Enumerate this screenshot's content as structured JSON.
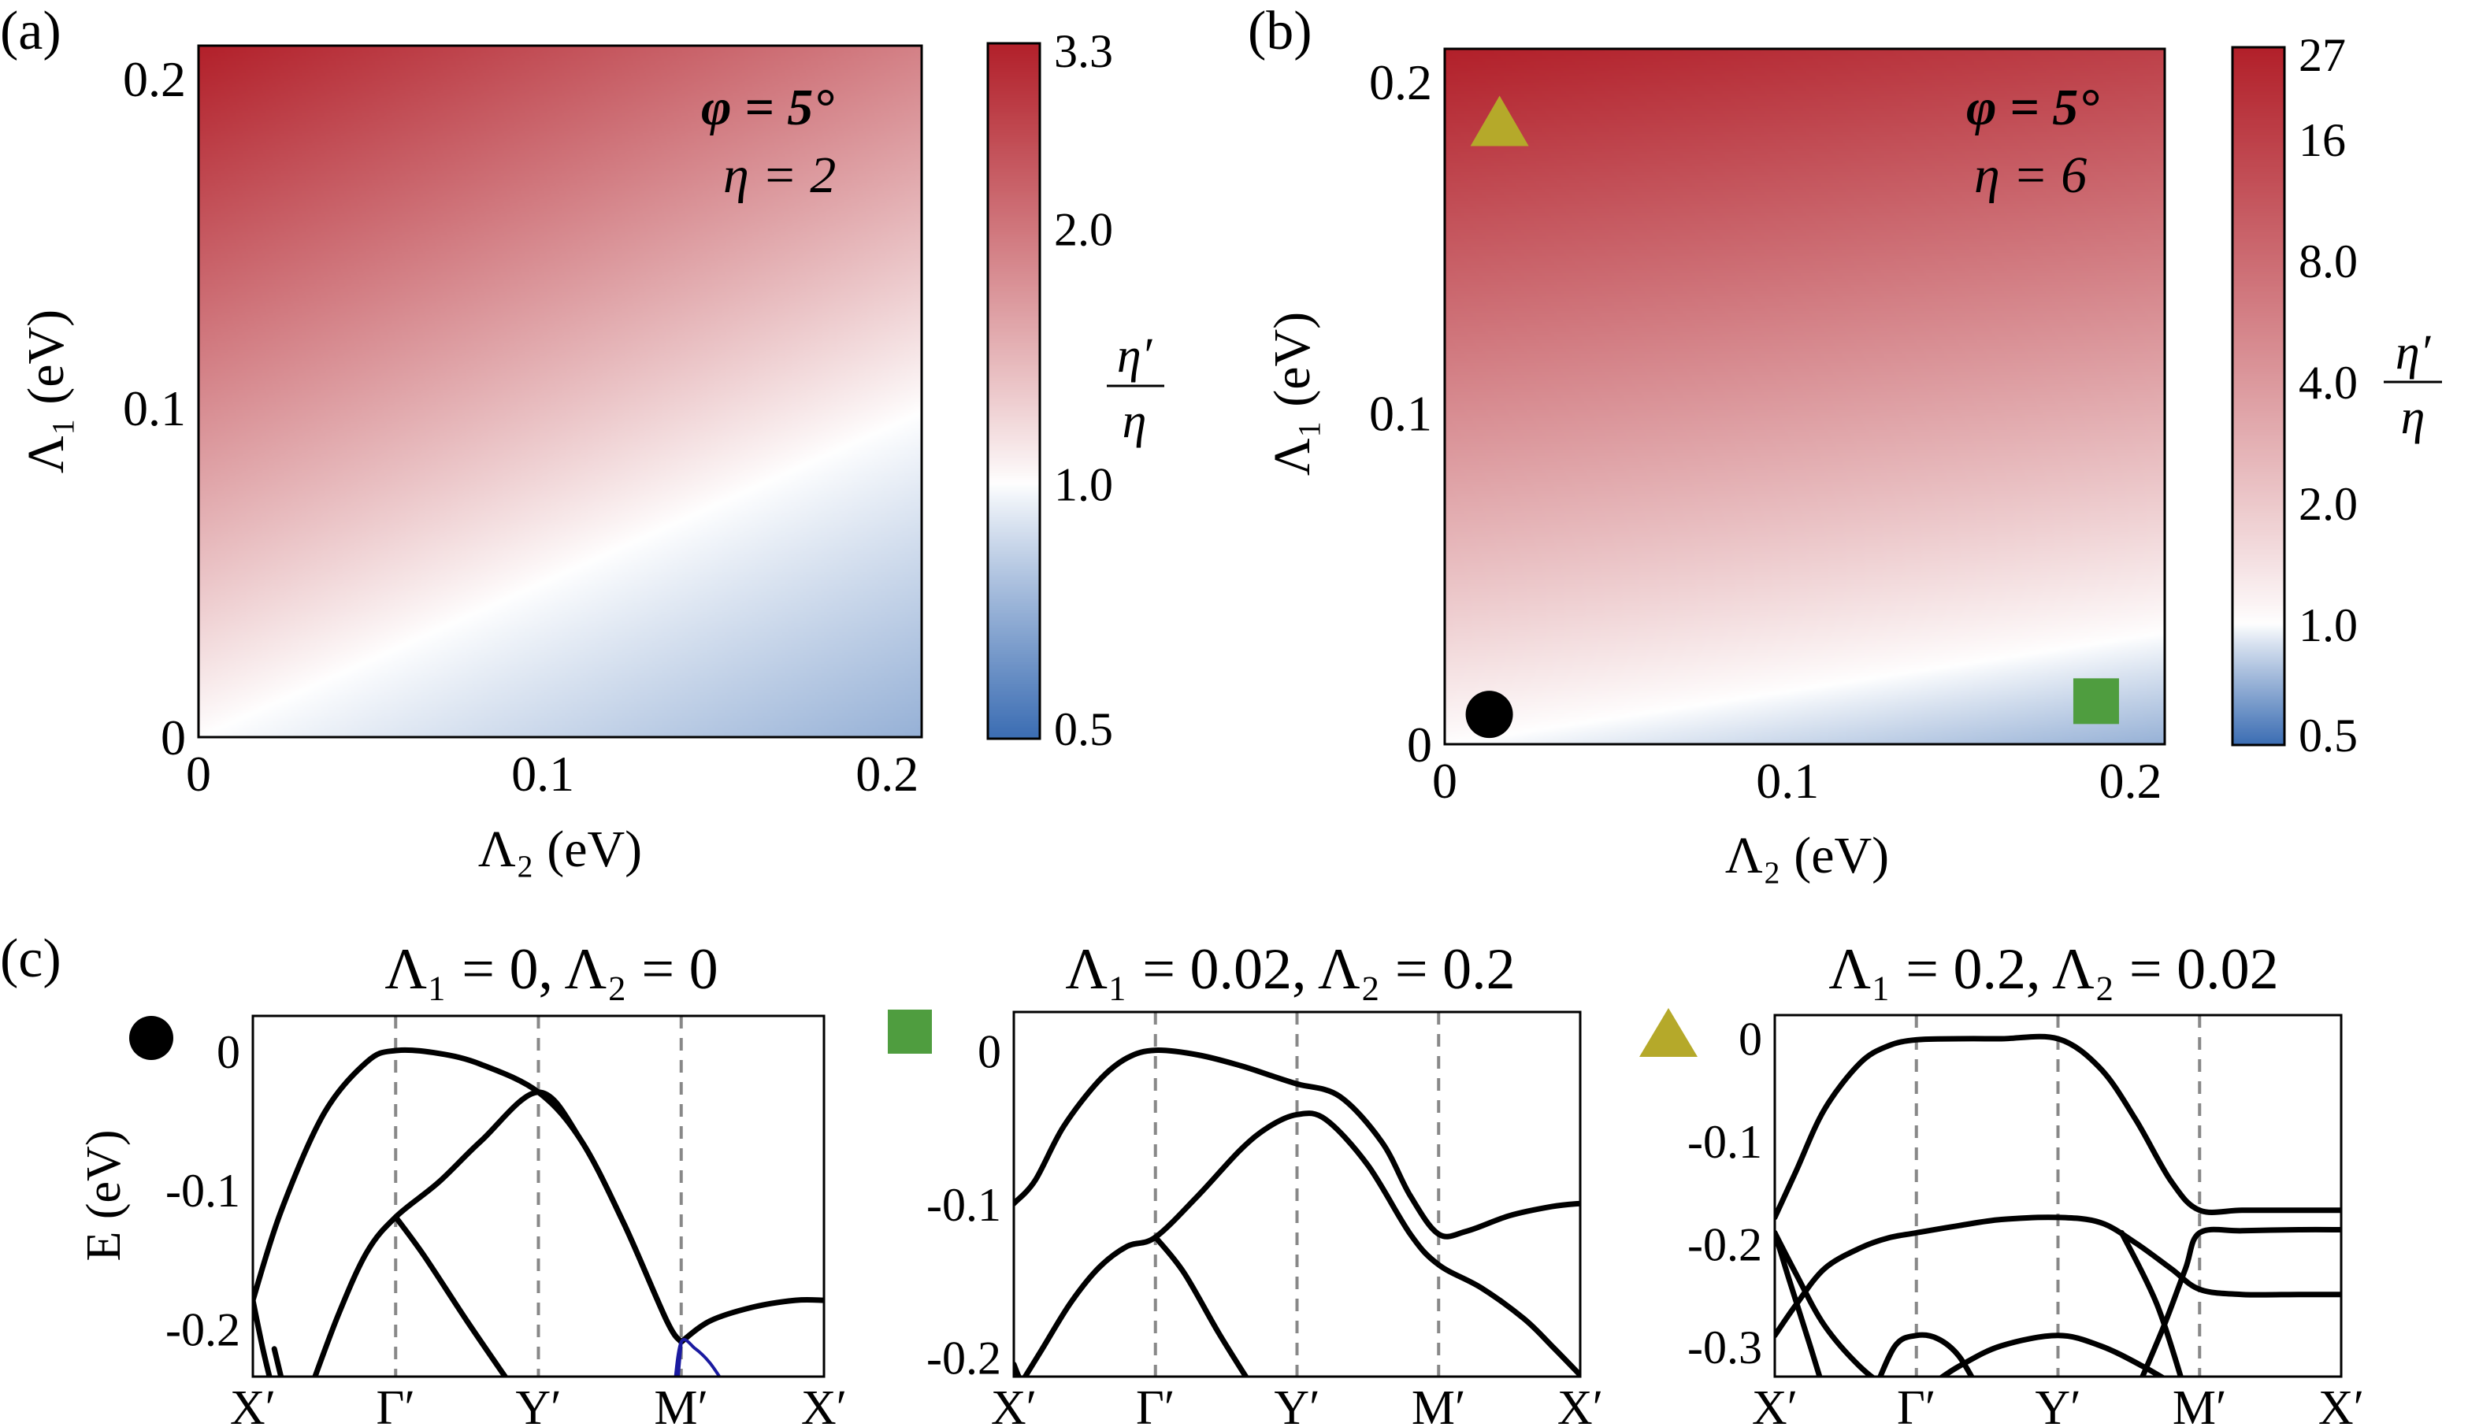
{
  "colors": {
    "red": "#b2202a",
    "white": "#ffffff",
    "blue": "#3b6db3",
    "curve": "#000000",
    "vline": "#888888",
    "blue_curve": "#1a1aa0",
    "circle_marker": "#000000",
    "square_marker": "#4f9d3f",
    "triangle_marker": "#b5a92a"
  },
  "chart_data": [
    {
      "id": "a",
      "type": "heatmap",
      "panel_label": "(a)",
      "xlabel": "Λ₂ (eV)",
      "ylabel": "Λ₁ (eV)",
      "xlim": [
        0,
        0.21
      ],
      "ylim": [
        0,
        0.21
      ],
      "xticks": [
        {
          "v": 0,
          "label": "0"
        },
        {
          "v": 0.1,
          "label": "0.1"
        },
        {
          "v": 0.2,
          "label": "0.2"
        }
      ],
      "yticks": [
        {
          "v": 0,
          "label": "0"
        },
        {
          "v": 0.1,
          "label": "0.1"
        },
        {
          "v": 0.2,
          "label": "0.2"
        }
      ],
      "annotation_phi": "φ = 5°",
      "annotation_eta": "η = 2",
      "colorbar": {
        "label_num": "η′",
        "label_den": "η",
        "min": 0.5,
        "max": 3.3,
        "white_at": 1.0,
        "scale": "log",
        "ticks": [
          {
            "v": 3.3,
            "label": "3.3"
          },
          {
            "v": 2.0,
            "label": "2.0"
          },
          {
            "v": 1.0,
            "label": "1.0"
          },
          {
            "v": 0.5,
            "label": "0.5"
          }
        ]
      },
      "field": {
        "white_line_slope": 0.47,
        "red_gain": 1.0,
        "blue_gain": 0.5
      }
    },
    {
      "id": "b",
      "type": "heatmap",
      "panel_label": "(b)",
      "xlabel": "Λ₂ (eV)",
      "ylabel": "Λ₁ (eV)",
      "xlim": [
        0,
        0.21
      ],
      "ylim": [
        0,
        0.21
      ],
      "xticks": [
        {
          "v": 0,
          "label": "0"
        },
        {
          "v": 0.1,
          "label": "0.1"
        },
        {
          "v": 0.2,
          "label": "0.2"
        }
      ],
      "yticks": [
        {
          "v": 0,
          "label": "0"
        },
        {
          "v": 0.1,
          "label": "0.1"
        },
        {
          "v": 0.2,
          "label": "0.2"
        }
      ],
      "annotation_phi": "φ = 5°",
      "annotation_eta": "η = 6",
      "colorbar": {
        "label_num": "η′",
        "label_den": "η",
        "min": 0.5,
        "max": 27,
        "white_at": 1.0,
        "scale": "log",
        "ticks": [
          {
            "v": 27,
            "label": "27"
          },
          {
            "v": 16,
            "label": "16"
          },
          {
            "v": 8.0,
            "label": "8.0"
          },
          {
            "v": 4.0,
            "label": "4.0"
          },
          {
            "v": 2.0,
            "label": "2.0"
          },
          {
            "v": 1.0,
            "label": "1.0"
          },
          {
            "v": 0.5,
            "label": "0.5"
          }
        ]
      },
      "field": {
        "white_line_slope": 0.16,
        "red_gain": 1.0,
        "blue_gain": 0.5
      },
      "markers": [
        {
          "shape": "circle",
          "x": 0.013,
          "y": 0.009
        },
        {
          "shape": "square",
          "x": 0.19,
          "y": 0.013
        },
        {
          "shape": "triangle",
          "x": 0.016,
          "y": 0.188
        }
      ]
    },
    {
      "id": "c1",
      "type": "line",
      "panel_label": "(c)",
      "title": "Λ₁ = 0, Λ₂ = 0",
      "ylabel": "E (eV)",
      "marker": "circle",
      "ylim": [
        -0.235,
        0.025
      ],
      "xtick_labels": [
        "X′",
        "Γ′",
        "Y′",
        "M′",
        "X′"
      ],
      "vlines_at": [
        1,
        2,
        3
      ],
      "yticks": [
        {
          "v": 0,
          "label": "0"
        },
        {
          "v": -0.1,
          "label": "-0.1"
        },
        {
          "v": -0.2,
          "label": "-0.2"
        }
      ],
      "series": [
        {
          "name": "band 1",
          "x": [
            0,
            0.2,
            0.5,
            0.8,
            1.0,
            1.3,
            1.6,
            2.0,
            2.3,
            2.6,
            2.9,
            3.0
          ],
          "y": [
            -0.18,
            -0.115,
            -0.045,
            -0.008,
            0.0,
            -0.002,
            -0.01,
            -0.03,
            -0.065,
            -0.125,
            -0.195,
            -0.21
          ]
        },
        {
          "name": "band 2",
          "x": [
            0,
            0.07,
            0.14
          ],
          "y": [
            -0.18,
            -0.215,
            -0.245
          ]
        },
        {
          "name": "band 3",
          "x": [
            0.4,
            0.6,
            0.8,
            1.0,
            1.3,
            1.6,
            2.0,
            2.3,
            2.6,
            2.9,
            3.0
          ],
          "y": [
            -0.245,
            -0.19,
            -0.145,
            -0.12,
            -0.095,
            -0.065,
            -0.03,
            -0.065,
            -0.125,
            -0.195,
            -0.21
          ]
        },
        {
          "name": "band 4",
          "x": [
            1.0,
            1.2,
            1.5,
            1.8
          ],
          "y": [
            -0.12,
            -0.148,
            -0.195,
            -0.24
          ]
        },
        {
          "name": "band 5",
          "x": [
            3.0,
            3.2,
            3.5,
            3.8,
            4.0
          ],
          "y": [
            -0.21,
            -0.195,
            -0.185,
            -0.18,
            -0.18
          ]
        },
        {
          "name": "band 6",
          "x": [
            0.15,
            0.22
          ],
          "y": [
            -0.215,
            -0.245
          ],
          "style": "thin"
        },
        {
          "name": "blue band a",
          "x": [
            2.95,
            3.0,
            3.1,
            3.2,
            3.3
          ],
          "y": [
            -0.245,
            -0.21,
            -0.215,
            -0.225,
            -0.24
          ],
          "color": "blue"
        },
        {
          "name": "blue band b",
          "x": [
            3.0,
            2.97
          ],
          "y": [
            -0.21,
            -0.245
          ],
          "color": "blue"
        }
      ]
    },
    {
      "id": "c2",
      "type": "line",
      "title": "Λ₁ = 0.02, Λ₂ = 0.2",
      "marker": "square",
      "ylim": [
        -0.213,
        0.025
      ],
      "xtick_labels": [
        "X′",
        "Γ′",
        "Y′",
        "M′",
        "X′"
      ],
      "vlines_at": [
        1,
        2,
        3
      ],
      "yticks": [
        {
          "v": 0,
          "label": "0"
        },
        {
          "v": -0.1,
          "label": "-0.1"
        },
        {
          "v": -0.2,
          "label": "-0.2"
        }
      ],
      "series": [
        {
          "name": "band 1",
          "x": [
            0,
            0.15,
            0.35,
            0.6,
            0.8,
            1.0,
            1.3,
            1.6,
            1.8,
            2.0,
            2.3,
            2.6,
            2.8,
            3.0,
            3.2,
            3.5,
            3.8,
            4.0
          ],
          "y": [
            -0.1,
            -0.085,
            -0.05,
            -0.02,
            -0.005,
            0.0,
            -0.003,
            -0.01,
            -0.016,
            -0.022,
            -0.03,
            -0.06,
            -0.095,
            -0.12,
            -0.118,
            -0.108,
            -0.102,
            -0.1
          ]
        },
        {
          "name": "band 2",
          "x": [
            0,
            0.03,
            0.07
          ],
          "y": [
            -0.205,
            -0.212,
            -0.22
          ]
        },
        {
          "name": "band 3",
          "x": [
            0.02,
            0.2,
            0.4,
            0.6,
            0.8,
            1.0,
            1.3,
            1.6,
            1.8,
            2.0,
            2.2,
            2.5,
            2.8,
            3.0,
            3.3,
            3.6,
            3.8,
            4.0
          ],
          "y": [
            -0.222,
            -0.195,
            -0.165,
            -0.142,
            -0.128,
            -0.122,
            -0.095,
            -0.065,
            -0.05,
            -0.042,
            -0.045,
            -0.075,
            -0.12,
            -0.14,
            -0.155,
            -0.175,
            -0.193,
            -0.212
          ]
        },
        {
          "name": "band 4",
          "x": [
            1.0,
            1.2,
            1.45,
            1.7
          ],
          "y": [
            -0.122,
            -0.145,
            -0.185,
            -0.222
          ]
        }
      ]
    },
    {
      "id": "c3",
      "type": "line",
      "title": "Λ₁ = 0.2, Λ₂ = 0.02",
      "marker": "triangle",
      "ylim": [
        -0.33,
        0.022
      ],
      "xtick_labels": [
        "X′",
        "Γ′",
        "Y′",
        "M′",
        "X′"
      ],
      "vlines_at": [
        1,
        2,
        3
      ],
      "yticks": [
        {
          "v": 0,
          "label": "0"
        },
        {
          "v": -0.1,
          "label": "-0.1"
        },
        {
          "v": -0.2,
          "label": "-0.2"
        },
        {
          "v": -0.3,
          "label": "-0.3"
        }
      ],
      "series": [
        {
          "name": "band 1",
          "x": [
            0,
            0.15,
            0.35,
            0.6,
            0.8,
            1.0,
            1.3,
            1.6,
            2.0,
            2.3,
            2.55,
            2.8,
            3.0,
            3.3,
            3.7,
            4.0
          ],
          "y": [
            -0.175,
            -0.13,
            -0.07,
            -0.025,
            -0.008,
            -0.002,
            -0.001,
            -0.001,
            -0.001,
            -0.03,
            -0.08,
            -0.14,
            -0.168,
            -0.168,
            -0.168,
            -0.168
          ]
        },
        {
          "name": "band 2",
          "x": [
            0,
            0.15,
            0.35,
            0.6,
            0.8,
            1.0,
            1.3,
            1.6,
            2.0,
            2.3,
            2.6,
            2.85,
            3.0,
            3.3,
            3.7,
            4.0
          ],
          "y": [
            -0.19,
            -0.23,
            -0.28,
            -0.32,
            -0.34,
            -0.345,
            -0.32,
            -0.3,
            -0.29,
            -0.3,
            -0.32,
            -0.34,
            -0.35,
            -0.35,
            -0.35,
            -0.35
          ]
        },
        {
          "name": "band 3",
          "x": [
            0,
            0.15,
            0.35,
            0.6,
            0.8,
            1.0,
            1.3,
            1.6,
            2.0,
            2.3,
            2.55,
            2.8,
            3.0,
            3.3,
            3.7,
            4.0
          ],
          "y": [
            -0.29,
            -0.26,
            -0.225,
            -0.205,
            -0.195,
            -0.19,
            -0.183,
            -0.177,
            -0.175,
            -0.18,
            -0.2,
            -0.225,
            -0.245,
            -0.25,
            -0.25,
            -0.25
          ]
        },
        {
          "name": "band 4",
          "x": [
            0,
            0.1,
            0.25,
            0.35
          ],
          "y": [
            -0.19,
            -0.235,
            -0.3,
            -0.345
          ]
        },
        {
          "name": "band 5",
          "x": [
            2.55,
            2.75,
            2.9,
            3.0,
            3.3,
            3.7,
            4.0
          ],
          "y": [
            -0.345,
            -0.28,
            -0.225,
            -0.19,
            -0.188,
            -0.187,
            -0.187
          ]
        },
        {
          "name": "band 6",
          "x": [
            2.45,
            2.7,
            2.9
          ],
          "y": [
            -0.19,
            -0.26,
            -0.345
          ]
        },
        {
          "name": "band 7",
          "x": [
            0.7,
            0.85,
            1.0,
            1.15,
            1.3,
            1.45
          ],
          "y": [
            -0.345,
            -0.3,
            -0.29,
            -0.293,
            -0.31,
            -0.345
          ]
        }
      ]
    }
  ]
}
